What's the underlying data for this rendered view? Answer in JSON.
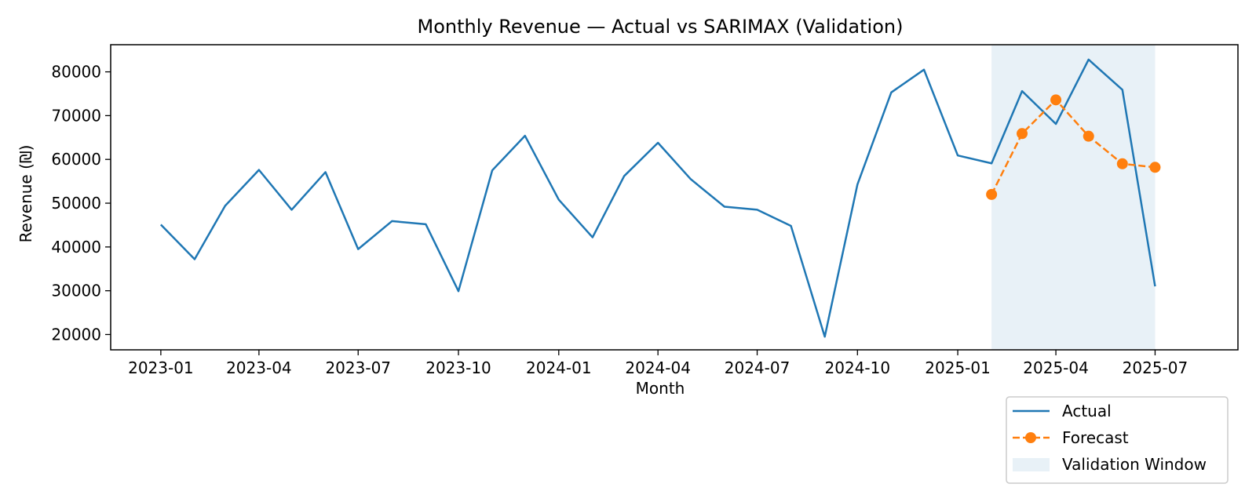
{
  "chart_data": {
    "type": "line",
    "title": "Monthly Revenue — Actual vs SARIMAX (Validation)",
    "xlabel": "Month",
    "ylabel": "Revenue (₪)",
    "x_ticks": [
      "2023-01",
      "2023-04",
      "2023-07",
      "2023-10",
      "2024-01",
      "2024-04",
      "2024-07",
      "2024-10",
      "2025-01",
      "2025-04",
      "2025-07"
    ],
    "y_ticks": [
      20000,
      30000,
      40000,
      50000,
      60000,
      70000,
      80000
    ],
    "xlim": [
      "2022-11-16",
      "2025-09-15"
    ],
    "ylim": [
      16500,
      86200
    ],
    "grid": false,
    "legend_position": "lower-right outside",
    "series": [
      {
        "name": "Actual",
        "color": "#1f77b4",
        "style": "solid",
        "x": [
          "2023-01",
          "2023-02",
          "2023-03",
          "2023-04",
          "2023-05",
          "2023-06",
          "2023-07",
          "2023-08",
          "2023-09",
          "2023-10",
          "2023-11",
          "2023-12",
          "2024-01",
          "2024-02",
          "2024-03",
          "2024-04",
          "2024-05",
          "2024-06",
          "2024-07",
          "2024-08",
          "2024-09",
          "2024-10",
          "2024-11",
          "2024-12",
          "2025-01",
          "2025-02",
          "2025-03",
          "2025-04",
          "2025-05",
          "2025-06",
          "2025-07"
        ],
        "values": [
          45100,
          37200,
          49400,
          57600,
          48500,
          57100,
          39500,
          45900,
          45200,
          29900,
          57500,
          65400,
          50800,
          42200,
          56200,
          63800,
          55500,
          49200,
          48500,
          44800,
          19500,
          54300,
          75300,
          80500,
          60900,
          59100,
          75600,
          68100,
          82800,
          75900,
          31000
        ]
      },
      {
        "name": "Forecast",
        "color": "#ff7f0e",
        "style": "dashed",
        "marker": "circle",
        "x": [
          "2025-02",
          "2025-03",
          "2025-04",
          "2025-05",
          "2025-06",
          "2025-07"
        ],
        "values": [
          52000,
          65900,
          73600,
          65300,
          59000,
          58200
        ]
      }
    ],
    "shaded_regions": [
      {
        "name": "Validation Window",
        "from": "2025-02",
        "to": "2025-07",
        "color": "#1f77b4",
        "opacity": 0.1
      }
    ]
  }
}
